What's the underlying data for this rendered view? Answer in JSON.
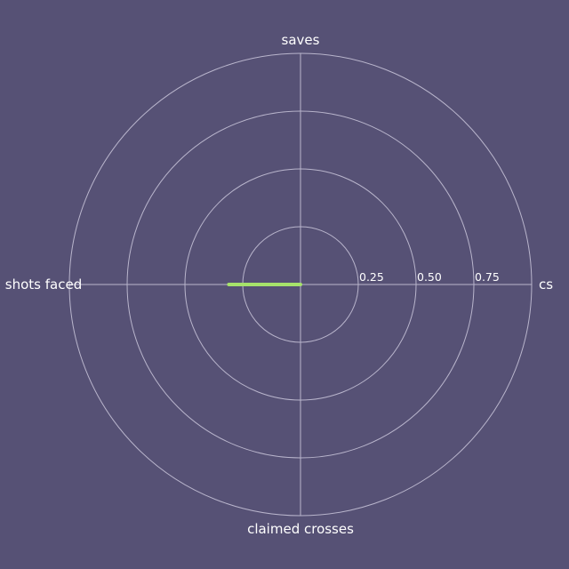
{
  "background": "#565175",
  "chart_data": {
    "type": "radar",
    "axes": [
      "cs",
      "saves",
      "shots faced",
      "claimed crosses"
    ],
    "rlim": [
      0,
      1
    ],
    "rticks": [
      0.25,
      0.5,
      0.75,
      1.0
    ],
    "rtick_labels": [
      "0.25",
      "0.50",
      "0.75",
      ""
    ],
    "grid": true,
    "grid_color": "#b9b5cc",
    "series": [
      {
        "values": [
          0,
          0,
          0.31,
          0
        ],
        "color": "#a6e26b"
      }
    ]
  }
}
